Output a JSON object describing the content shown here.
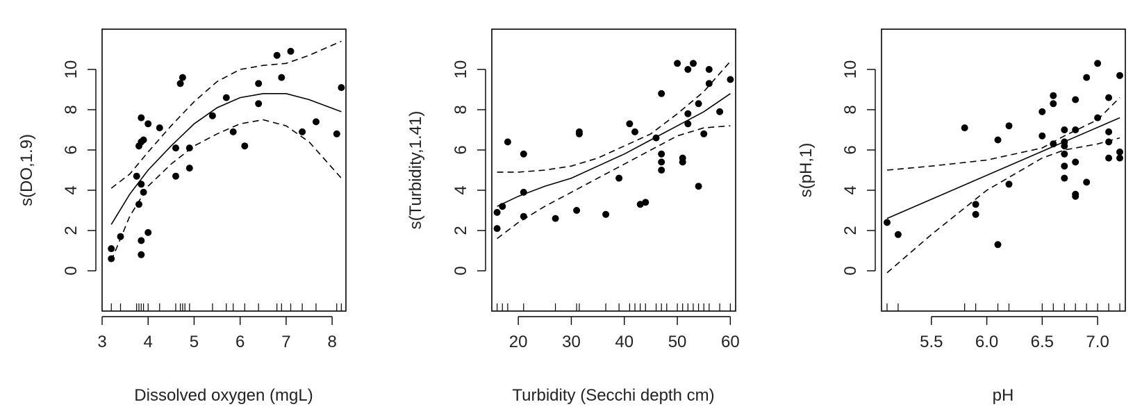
{
  "chart_data": [
    {
      "type": "scatter",
      "xlabel": "Dissolved oxygen (mgL)",
      "ylabel": "s(DO,1.9)",
      "xlim": [
        3,
        8.3
      ],
      "ylim": [
        -2,
        12
      ],
      "xticks": [
        3,
        4,
        5,
        6,
        7,
        8
      ],
      "yticks": [
        0,
        2,
        4,
        6,
        8,
        10
      ],
      "points": [
        [
          3.2,
          1.1
        ],
        [
          3.2,
          0.6
        ],
        [
          3.4,
          1.7
        ],
        [
          3.75,
          4.7
        ],
        [
          3.8,
          6.2
        ],
        [
          3.85,
          6.4
        ],
        [
          3.9,
          6.5
        ],
        [
          3.85,
          4.3
        ],
        [
          3.8,
          3.3
        ],
        [
          3.9,
          3.9
        ],
        [
          3.85,
          7.6
        ],
        [
          4.0,
          7.3
        ],
        [
          3.85,
          1.5
        ],
        [
          3.85,
          0.8
        ],
        [
          4.0,
          1.9
        ],
        [
          4.25,
          7.1
        ],
        [
          4.6,
          6.1
        ],
        [
          4.6,
          4.7
        ],
        [
          4.7,
          9.3
        ],
        [
          4.75,
          9.6
        ],
        [
          4.9,
          6.1
        ],
        [
          4.9,
          5.1
        ],
        [
          5.4,
          7.7
        ],
        [
          5.7,
          8.6
        ],
        [
          5.85,
          6.9
        ],
        [
          6.1,
          6.2
        ],
        [
          6.4,
          9.3
        ],
        [
          6.4,
          8.3
        ],
        [
          6.8,
          10.7
        ],
        [
          6.9,
          9.6
        ],
        [
          7.1,
          10.9
        ],
        [
          7.35,
          6.9
        ],
        [
          7.65,
          7.4
        ],
        [
          8.1,
          6.8
        ],
        [
          8.2,
          9.1
        ]
      ],
      "fit": {
        "x": [
          3.2,
          3.6,
          4.0,
          4.5,
          5.0,
          5.5,
          6.0,
          6.5,
          7.0,
          7.5,
          8.2
        ],
        "y": [
          2.3,
          3.8,
          5.0,
          6.2,
          7.3,
          8.1,
          8.6,
          8.8,
          8.8,
          8.5,
          7.9
        ]
      },
      "upper": {
        "x": [
          3.2,
          3.6,
          4.0,
          4.5,
          5.0,
          5.5,
          6.0,
          6.5,
          7.0,
          7.5,
          8.2
        ],
        "y": [
          4.1,
          4.8,
          5.9,
          7.2,
          8.4,
          9.4,
          10.0,
          10.2,
          10.3,
          10.7,
          11.4
        ]
      },
      "lower": {
        "x": [
          3.2,
          3.6,
          4.0,
          4.5,
          5.0,
          5.5,
          6.0,
          6.5,
          7.0,
          7.5,
          8.2
        ],
        "y": [
          0.5,
          2.7,
          4.2,
          5.3,
          6.2,
          6.8,
          7.3,
          7.5,
          7.2,
          6.4,
          4.6
        ]
      },
      "rug": [
        3.2,
        3.4,
        3.75,
        3.8,
        3.85,
        3.9,
        4.0,
        4.25,
        4.6,
        4.7,
        4.75,
        4.8,
        4.9,
        5.4,
        5.7,
        5.85,
        6.1,
        6.4,
        6.8,
        6.9,
        7.1,
        7.35,
        7.65,
        8.1,
        8.2
      ]
    },
    {
      "type": "scatter",
      "xlabel": "Turbidity (Secchi depth cm)",
      "ylabel": "s(Turbidity,1.41)",
      "xlim": [
        15,
        61
      ],
      "ylim": [
        -2,
        12
      ],
      "xticks": [
        20,
        30,
        40,
        50,
        60
      ],
      "yticks": [
        0,
        2,
        4,
        6,
        8,
        10
      ],
      "points": [
        [
          16,
          2.9
        ],
        [
          16,
          2.1
        ],
        [
          17,
          3.2
        ],
        [
          18,
          6.4
        ],
        [
          21,
          5.8
        ],
        [
          21,
          3.9
        ],
        [
          21,
          2.7
        ],
        [
          27,
          2.6
        ],
        [
          31,
          3.0
        ],
        [
          31.5,
          6.8
        ],
        [
          31.5,
          6.9
        ],
        [
          36.5,
          2.8
        ],
        [
          39,
          4.6
        ],
        [
          41,
          7.3
        ],
        [
          42,
          6.9
        ],
        [
          43,
          3.3
        ],
        [
          44,
          3.4
        ],
        [
          46,
          6.6
        ],
        [
          47,
          8.8
        ],
        [
          47,
          5.8
        ],
        [
          47,
          5.4
        ],
        [
          47,
          5.0
        ],
        [
          50,
          10.3
        ],
        [
          51,
          5.6
        ],
        [
          51,
          5.4
        ],
        [
          52,
          10.0
        ],
        [
          52,
          7.8
        ],
        [
          52,
          7.3
        ],
        [
          53,
          10.3
        ],
        [
          54,
          8.3
        ],
        [
          54,
          4.2
        ],
        [
          55,
          6.8
        ],
        [
          56,
          10.0
        ],
        [
          56,
          9.3
        ],
        [
          58,
          7.9
        ],
        [
          60,
          9.5
        ]
      ],
      "fit": {
        "x": [
          16,
          20,
          25,
          30,
          35,
          40,
          45,
          50,
          55,
          60
        ],
        "y": [
          3.2,
          3.7,
          4.2,
          4.6,
          5.2,
          5.8,
          6.5,
          7.2,
          7.9,
          8.8
        ]
      },
      "upper": {
        "x": [
          16,
          20,
          25,
          30,
          35,
          40,
          45,
          50,
          55,
          60
        ],
        "y": [
          4.9,
          4.9,
          5.0,
          5.2,
          5.6,
          6.2,
          6.8,
          7.8,
          8.9,
          10.4
        ]
      },
      "lower": {
        "x": [
          16,
          20,
          25,
          30,
          35,
          40,
          45,
          50,
          55,
          60
        ],
        "y": [
          1.6,
          2.4,
          3.2,
          3.9,
          4.6,
          5.3,
          6.0,
          6.7,
          7.1,
          7.2
        ]
      },
      "rug": [
        16,
        17,
        18,
        21,
        27,
        31,
        31.5,
        36.5,
        39,
        41,
        42,
        43,
        44,
        46,
        47,
        48,
        50,
        51,
        52,
        53,
        54,
        55,
        56,
        58,
        60
      ]
    },
    {
      "type": "scatter",
      "xlabel": "pH",
      "ylabel": "s(pH,1)",
      "xlim": [
        5.05,
        7.25
      ],
      "ylim": [
        -2,
        12
      ],
      "xticks": [
        5.5,
        6.0,
        6.5,
        7.0
      ],
      "xticklabels": [
        "5.5",
        "6.0",
        "6.5",
        "7.0"
      ],
      "yticks": [
        0,
        2,
        4,
        6,
        8,
        10
      ],
      "points": [
        [
          5.1,
          2.4
        ],
        [
          5.2,
          1.8
        ],
        [
          5.8,
          7.1
        ],
        [
          5.9,
          3.3
        ],
        [
          5.9,
          2.8
        ],
        [
          6.1,
          6.5
        ],
        [
          6.1,
          1.3
        ],
        [
          6.2,
          7.2
        ],
        [
          6.2,
          4.3
        ],
        [
          6.5,
          7.9
        ],
        [
          6.5,
          6.7
        ],
        [
          6.6,
          8.7
        ],
        [
          6.6,
          8.3
        ],
        [
          6.6,
          6.3
        ],
        [
          6.7,
          7.0
        ],
        [
          6.7,
          6.4
        ],
        [
          6.7,
          6.2
        ],
        [
          6.7,
          5.8
        ],
        [
          6.7,
          5.2
        ],
        [
          6.7,
          4.6
        ],
        [
          6.8,
          8.5
        ],
        [
          6.8,
          7.0
        ],
        [
          6.8,
          5.4
        ],
        [
          6.8,
          3.8
        ],
        [
          6.8,
          3.7
        ],
        [
          6.9,
          9.6
        ],
        [
          6.9,
          4.4
        ],
        [
          7.0,
          10.3
        ],
        [
          7.0,
          7.6
        ],
        [
          7.1,
          8.6
        ],
        [
          7.1,
          6.9
        ],
        [
          7.1,
          6.4
        ],
        [
          7.1,
          5.6
        ],
        [
          7.2,
          9.7
        ],
        [
          7.2,
          5.9
        ],
        [
          7.2,
          5.6
        ]
      ],
      "fit": {
        "x": [
          5.1,
          7.2
        ],
        "y": [
          2.6,
          7.6
        ]
      },
      "upper": {
        "x": [
          5.1,
          5.5,
          6.0,
          6.5,
          6.7,
          7.0,
          7.2
        ],
        "y": [
          5.0,
          5.2,
          5.5,
          6.1,
          6.7,
          7.5,
          8.6
        ]
      },
      "lower": {
        "x": [
          5.1,
          5.5,
          6.0,
          6.5,
          6.7,
          7.0,
          7.2
        ],
        "y": [
          -0.1,
          1.8,
          4.0,
          5.6,
          6.0,
          6.3,
          6.6
        ]
      },
      "rug": [
        5.1,
        5.2,
        5.8,
        5.9,
        6.1,
        6.2,
        6.5,
        6.6,
        6.7,
        6.8,
        6.9,
        7.0,
        7.1,
        7.2
      ]
    }
  ]
}
